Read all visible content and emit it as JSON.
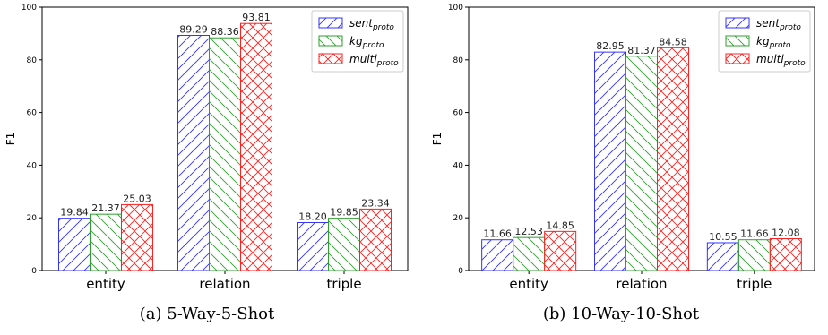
{
  "chart_data": [
    {
      "type": "bar",
      "caption": "(a)  5-Way-5-Shot",
      "ylabel": "F1",
      "ylim": [
        0,
        100
      ],
      "yticks": [
        0,
        20,
        40,
        60,
        80,
        100
      ],
      "categories": [
        "entity",
        "relation",
        "triple"
      ],
      "series": [
        {
          "name": "sent",
          "subscript": "proto",
          "color": "#3333ff",
          "values": [
            19.84,
            89.29,
            18.2
          ],
          "labels": [
            "19.84",
            "89.29",
            "18.20"
          ]
        },
        {
          "name": "kg",
          "subscript": "proto",
          "color": "#2ca02c",
          "values": [
            21.37,
            88.36,
            19.85
          ],
          "labels": [
            "21.37",
            "88.36",
            "19.85"
          ]
        },
        {
          "name": "multi",
          "subscript": "proto",
          "color": "#ff2020",
          "values": [
            25.03,
            93.81,
            23.34
          ],
          "labels": [
            "25.03",
            "93.81",
            "23.34"
          ]
        }
      ],
      "legend": "top-right"
    },
    {
      "type": "bar",
      "caption": "(b)  10-Way-10-Shot",
      "ylabel": "F1",
      "ylim": [
        0,
        100
      ],
      "yticks": [
        0,
        20,
        40,
        60,
        80,
        100
      ],
      "categories": [
        "entity",
        "relation",
        "triple"
      ],
      "series": [
        {
          "name": "sent",
          "subscript": "proto",
          "color": "#3333ff",
          "values": [
            11.66,
            82.95,
            10.55
          ],
          "labels": [
            "11.66",
            "82.95",
            "10.55"
          ]
        },
        {
          "name": "kg",
          "subscript": "proto",
          "color": "#2ca02c",
          "values": [
            12.53,
            81.37,
            11.66
          ],
          "labels": [
            "12.53",
            "81.37",
            "11.66"
          ]
        },
        {
          "name": "multi",
          "subscript": "proto",
          "color": "#ff2020",
          "values": [
            14.85,
            84.58,
            12.08
          ],
          "labels": [
            "14.85",
            "84.58",
            "12.08"
          ]
        }
      ],
      "legend": "top-right"
    }
  ]
}
